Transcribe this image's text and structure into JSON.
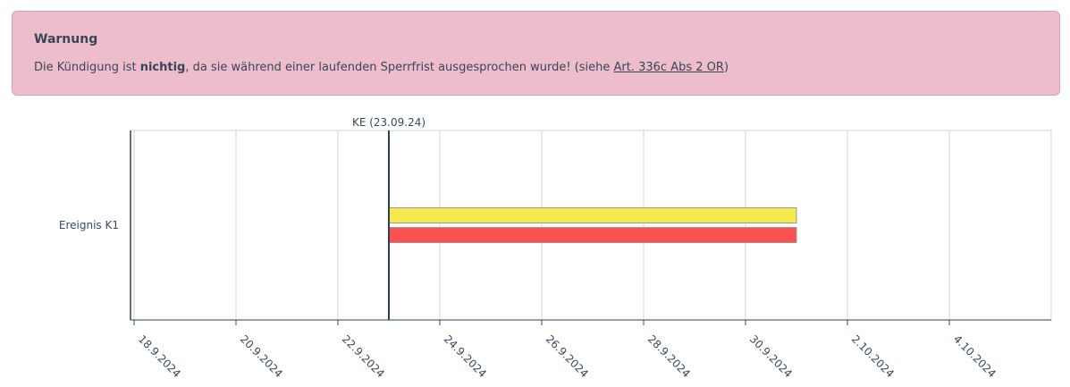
{
  "warning": {
    "title": "Warnung",
    "text_before": "Die Kündigung ist ",
    "text_bold": "nichtig",
    "text_after": ", da sie während einer laufenden Sperrfrist ausgesprochen wurde! (siehe ",
    "link": "Art. 336c Abs 2 OR",
    "text_end": ")"
  },
  "chart_data": {
    "type": "gantt",
    "categories": [
      "Ereignis K1"
    ],
    "series": [
      {
        "color": "#f5e94e",
        "start": [
          "2024-09-23"
        ],
        "end": [
          "2024-10-01"
        ]
      },
      {
        "color": "#fb5151",
        "start": [
          "2024-09-23"
        ],
        "end": [
          "2024-10-01"
        ]
      }
    ],
    "annotations": [
      {
        "label": "KE (23.09.24)",
        "x": "2024-09-23"
      }
    ],
    "xlim": [
      "2024-09-18",
      "2024-10-06"
    ],
    "xticks": [
      {
        "value": "2024-09-18",
        "label": "18.9.2024"
      },
      {
        "value": "2024-09-20",
        "label": "20.9.2024"
      },
      {
        "value": "2024-09-22",
        "label": "22.9.2024"
      },
      {
        "value": "2024-09-24",
        "label": "24.9.2024"
      },
      {
        "value": "2024-09-26",
        "label": "26.9.2024"
      },
      {
        "value": "2024-09-28",
        "label": "28.9.2024"
      },
      {
        "value": "2024-09-30",
        "label": "30.9.2024"
      },
      {
        "value": "2024-10-02",
        "label": "2.10.2024"
      },
      {
        "value": "2024-10-04",
        "label": "4.10.2024"
      }
    ],
    "grid": true
  }
}
